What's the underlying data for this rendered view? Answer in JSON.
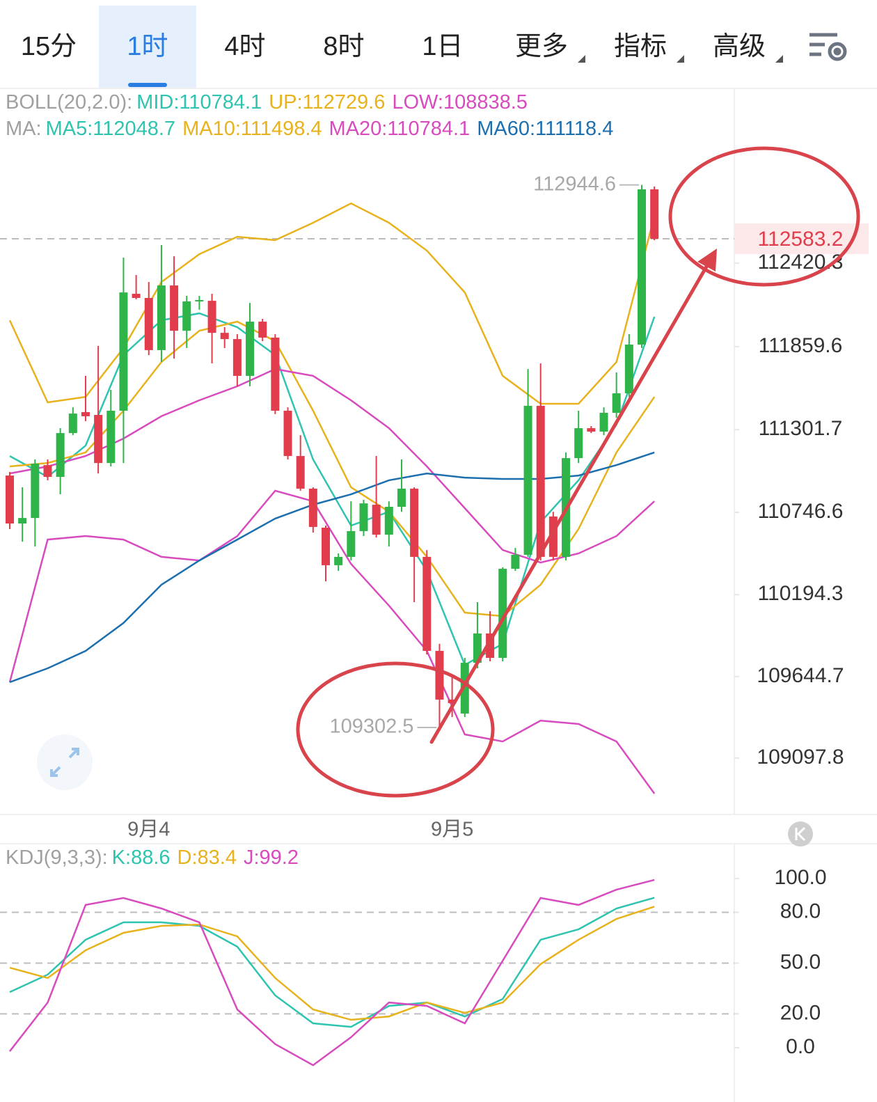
{
  "tabs": {
    "items": [
      "15分",
      "1时",
      "4时",
      "8时",
      "1日",
      "更多",
      "指标",
      "高级"
    ],
    "active": 1
  },
  "chart_data": [
    {
      "type": "candlestick",
      "boll": {
        "label": "BOLL(20,2.0):",
        "series": [
          {
            "name": "MID:",
            "value": 110784.1,
            "color": "#2ec4b0"
          },
          {
            "name": "UP:",
            "value": 112729.6,
            "color": "#e8b21c",
            "values": [
              112036,
              111485,
              111522,
              111850,
              112293,
              112480,
              112597,
              112574,
              112691,
              112821,
              112691,
              112504,
              112223,
              111663,
              111476,
              111476,
              111756,
              112737
            ]
          },
          {
            "name": "LOW:",
            "value": 108838.5,
            "color": "#d84bbf",
            "values": [
              109607,
              110564,
              110588,
              110564,
              110448,
              110424,
              110588,
              110892,
              110821,
              110401,
              110121,
              109817,
              109256,
              109209,
              109349,
              109326,
              109209,
              108859
            ]
          }
        ]
      },
      "ma": {
        "label": "MA:",
        "series": [
          {
            "name": "MA5:",
            "value": 112048.7,
            "color": "#2ec4b0",
            "values": [
              111125,
              110985,
              111195,
              111803,
              112036,
              112083,
              111990,
              111803,
              111102,
              110658,
              110751,
              110354,
              109723,
              109864,
              110681,
              110962,
              111336,
              112060
            ]
          },
          {
            "name": "MA10:",
            "value": 111498.4,
            "color": "#e8b21c",
            "values": [
              111055,
              111078,
              111149,
              111429,
              111756,
              111966,
              112027,
              111896,
              111429,
              110915,
              110751,
              110448,
              110074,
              110050,
              110261,
              110635,
              111149,
              111522
            ]
          },
          {
            "name": "MA20:",
            "value": 110784.1,
            "color": "#d84bbf",
            "values": [
              111008,
              111055,
              111125,
              111242,
              111392,
              111499,
              111593,
              111709,
              111663,
              111499,
              111312,
              111055,
              110775,
              110494,
              110410,
              110471,
              110588,
              110821
            ]
          },
          {
            "name": "MA60:",
            "value": 111118.4,
            "color": "#1c6fae",
            "values": [
              109607,
              109700,
              109817,
              110004,
              110261,
              110424,
              110564,
              110705,
              110798,
              110868,
              110962,
              111008,
              110980,
              110971,
              110971,
              110994,
              111064,
              111149
            ]
          }
        ]
      },
      "line_x": [
        0,
        3,
        6,
        9,
        12,
        15,
        18,
        21,
        24,
        27,
        30,
        33,
        36,
        39,
        42,
        45,
        48,
        51
      ],
      "categories": [
        null,
        null,
        null,
        null,
        null,
        null,
        null,
        null,
        null,
        null,
        null,
        "9月4",
        null,
        null,
        null,
        null,
        null,
        null,
        null,
        null,
        null,
        null,
        null,
        null,
        null,
        null,
        null,
        null,
        null,
        null,
        null,
        null,
        null,
        null,
        null,
        "9月5",
        null,
        null,
        null,
        null,
        null,
        null,
        null,
        null,
        null,
        null,
        null,
        null,
        null,
        null,
        null,
        null
      ],
      "open": [
        110994,
        110672,
        110709,
        111064,
        110985,
        111279,
        111420,
        111401,
        111078,
        111429,
        112214,
        112186,
        111836,
        112270,
        111966,
        112163,
        112167,
        111952,
        111910,
        111663,
        112027,
        111920,
        111429,
        111125,
        110906,
        110644,
        110392,
        110448,
        110621,
        110798,
        110597,
        110784,
        110906,
        110448,
        109817,
        109490,
        109396,
        109737,
        109934,
        109770,
        110368,
        110462,
        111462,
        110719,
        110448,
        111111,
        111312,
        111289,
        111415,
        111546,
        111873,
        112915
      ],
      "close": [
        110672,
        110709,
        111074,
        110985,
        111279,
        111410,
        111392,
        111078,
        111429,
        112223,
        112186,
        111836,
        112270,
        111966,
        112163,
        112172,
        111952,
        111910,
        111663,
        112027,
        111920,
        111429,
        111125,
        110906,
        110649,
        110392,
        110448,
        110621,
        110807,
        110597,
        110784,
        110906,
        110448,
        109817,
        109490,
        109466,
        109737,
        109934,
        109770,
        110368,
        110462,
        111462,
        110448,
        110448,
        111111,
        111312,
        111289,
        111415,
        111546,
        111873,
        112915,
        112583.2
      ],
      "high": [
        111018,
        110915,
        111102,
        111102,
        111312,
        111452,
        111663,
        111864,
        111569,
        112457,
        112340,
        112293,
        112541,
        112466,
        112200,
        112200,
        112214,
        111990,
        111943,
        112153,
        112046,
        111943,
        111452,
        111265,
        110915,
        110658,
        110471,
        110821,
        110831,
        111125,
        110821,
        111102,
        110915,
        110494,
        109864,
        109644,
        109770,
        110144,
        110083,
        110378,
        110508,
        111709,
        111747,
        110751,
        111149,
        111429,
        111326,
        111452,
        111686,
        111943,
        112944.6,
        112934
      ],
      "low": [
        110635,
        110550,
        110518,
        110962,
        110868,
        111265,
        111359,
        111008,
        111055,
        111078,
        112177,
        111803,
        111756,
        111779,
        111850,
        112107,
        111747,
        111850,
        111593,
        111593,
        111896,
        111406,
        111102,
        110892,
        110611,
        110284,
        110354,
        110424,
        110588,
        110578,
        110518,
        110751,
        110144,
        109793,
        109302.5,
        109373,
        109373,
        109700,
        109747,
        109747,
        110354,
        110448,
        110424,
        110424,
        110424,
        111078,
        111279,
        111265,
        111382,
        111522,
        111850,
        112574
      ],
      "up_color": "#2fb44a",
      "down_color": "#e23d4c",
      "ylim": [
        108728,
        113588
      ],
      "yticks": [
        112420.3,
        111859.6,
        111301.7,
        110746.6,
        110194.3,
        109644.7,
        109097.8
      ]
    },
    {
      "type": "line",
      "legend_label": "KDJ(9,3,3):",
      "x": [
        0,
        3,
        6,
        9,
        12,
        15,
        18,
        21,
        24,
        27,
        30,
        33,
        36,
        39,
        42,
        45,
        48,
        51
      ],
      "series": [
        {
          "name": "K:",
          "value": 88.6,
          "color": "#2ec4b0",
          "values": [
            32.9,
            43.2,
            63.8,
            74.1,
            74.1,
            72.0,
            59.7,
            30.9,
            14.4,
            12.3,
            24.7,
            26.7,
            18.5,
            28.8,
            63.8,
            70.0,
            82.3,
            88.6
          ]
        },
        {
          "name": "D:",
          "value": 83.4,
          "color": "#e8b21c",
          "values": [
            47.3,
            41.2,
            57.6,
            67.9,
            72.0,
            72.8,
            65.8,
            41.2,
            22.6,
            16.5,
            18.5,
            26.7,
            20.6,
            26.7,
            49.4,
            63.8,
            76.1,
            83.4
          ]
        },
        {
          "name": "J:",
          "value": 99.2,
          "color": "#d84bbf",
          "values": [
            -2.1,
            26.7,
            84.4,
            88.5,
            82.3,
            74.1,
            22.6,
            2.1,
            -10.3,
            6.2,
            26.7,
            24.7,
            14.4,
            51.4,
            88.5,
            84.4,
            93.4,
            99.2
          ]
        }
      ],
      "ylim": [
        -22.6,
        119.3
      ],
      "yticks": [
        {
          "value": 100,
          "label": "100.0"
        },
        {
          "value": 80,
          "label": "80.0"
        },
        {
          "value": 50,
          "label": "50.0"
        },
        {
          "value": 20,
          "label": "20.0"
        },
        {
          "value": 0,
          "label": "0.0"
        }
      ],
      "grid_values": [
        80,
        50,
        20
      ]
    }
  ]
}
